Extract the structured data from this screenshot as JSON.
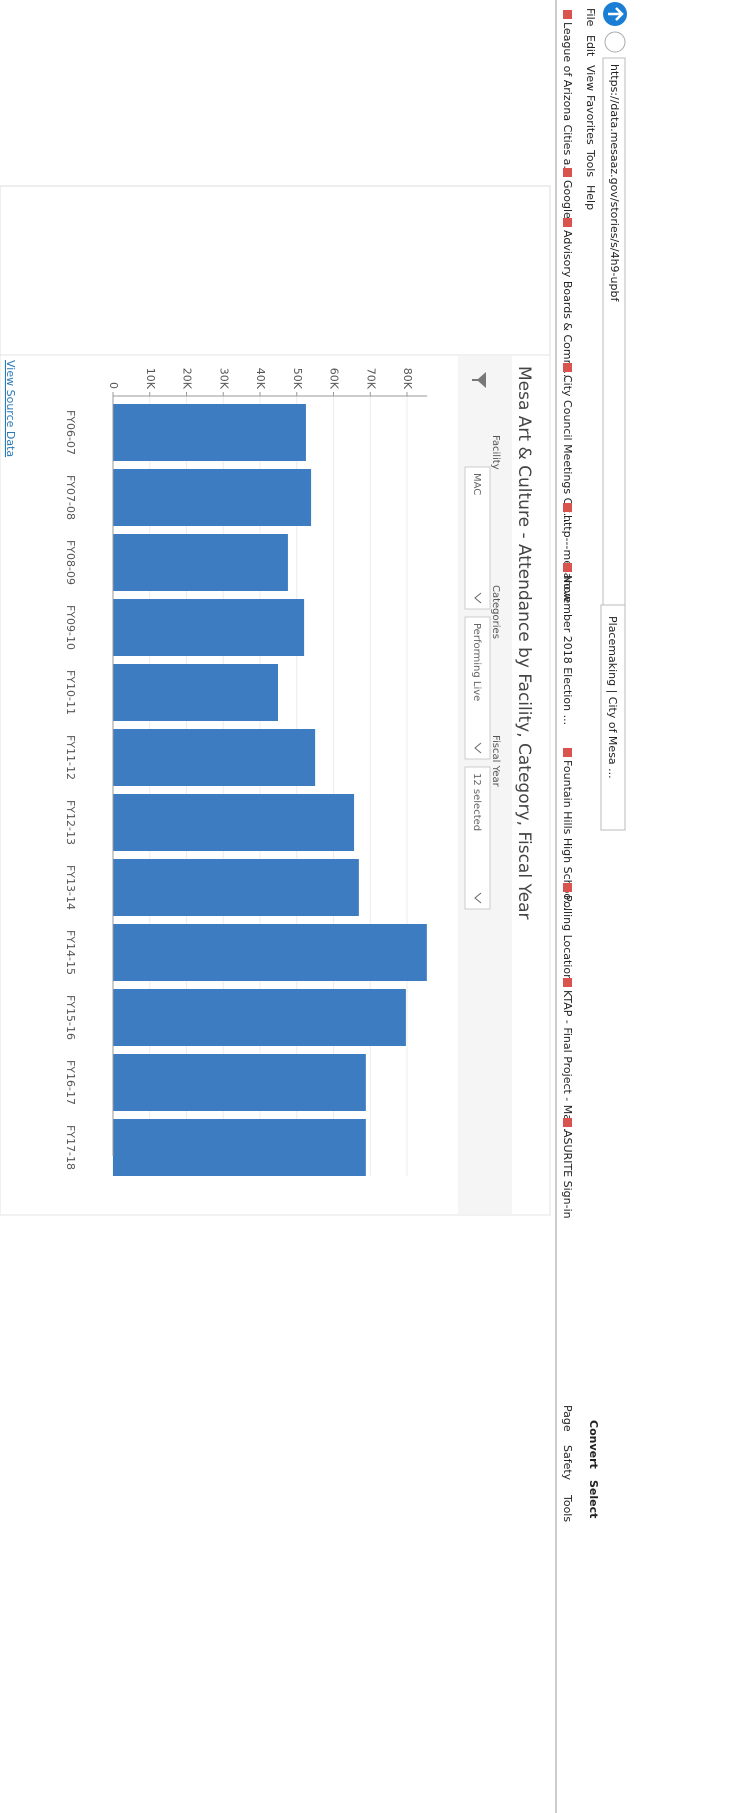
{
  "browser": {
    "url": "https://data.mesaaz.gov/stories/s/4h9-upbf",
    "tab_title": "Placemaking | City of Mesa ...",
    "menu": [
      "File",
      "Edit",
      "View",
      "Favorites",
      "Tools",
      "Help"
    ],
    "favorites": [
      "League of Arizona Cities a...",
      "Google",
      "Advisory Boards & Comm...",
      "City Council Meetings Cit...",
      "http---mesanow",
      "November 2018 Election ...",
      "Fountain Hills High Schoo...",
      "Polling Location",
      "KTAP - Final Project - Ma...",
      "ASURITE Sign-in"
    ],
    "toolbar": [
      "Convert",
      "Select",
      "Page",
      "Safety",
      "Tools"
    ]
  },
  "filters": [
    {
      "label": "Facility",
      "value": "MAC"
    },
    {
      "label": "Categories",
      "value": "Performing Live"
    },
    {
      "label": "Fiscal Year",
      "value": "12 selected"
    }
  ],
  "source_link": "View Source Data",
  "chart_data": {
    "type": "bar",
    "title": "Mesa Art & Culture - Attendance by Facility, Category, Fiscal Year",
    "categories": [
      "FY06-07",
      "FY07-08",
      "FY08-09",
      "FY09-10",
      "FY10-11",
      "FY11-12",
      "FY12-13",
      "FY13-14",
      "FY14-15",
      "FY15-16",
      "FY16-17",
      "FY17-18"
    ],
    "values": [
      52500,
      53900,
      47600,
      52000,
      44900,
      55000,
      65600,
      66900,
      85400,
      79700,
      68800,
      68800
    ],
    "color": "#3d7cc0",
    "ylim": [
      0,
      85500
    ],
    "yticks": [
      0,
      {
        "value": 10000,
        "label": "10K"
      },
      {
        "value": 20000,
        "label": "20K"
      },
      {
        "value": 30000,
        "label": "30K"
      },
      {
        "value": 40000,
        "label": "40K"
      },
      {
        "value": 50000,
        "label": "50K"
      },
      {
        "value": 60000,
        "label": "60K"
      },
      {
        "value": 70000,
        "label": "70K"
      },
      {
        "value": 80000,
        "label": "80K"
      }
    ],
    "grid": true
  }
}
